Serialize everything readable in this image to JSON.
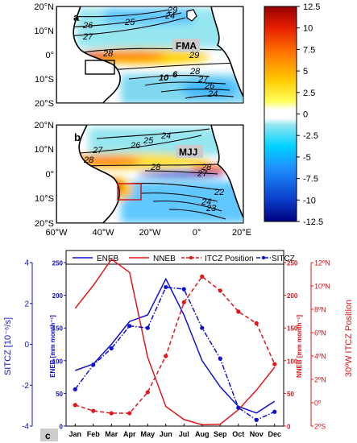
{
  "maps": {
    "panel_a": {
      "label": "a",
      "season": "FMA",
      "lat_ticks": [
        "20°N",
        "10°N",
        "0°",
        "10°S",
        "20°S"
      ],
      "contour_labels": [
        "24",
        "25",
        "26",
        "27",
        "28",
        "29",
        "29",
        "10",
        "6",
        "28",
        "27",
        "26",
        "24"
      ]
    },
    "panel_b": {
      "label": "b",
      "season": "MJJ",
      "lat_ticks": [
        "20°N",
        "10°N",
        "0°",
        "10°S",
        "20°S"
      ],
      "lon_ticks": [
        "60°W",
        "40°W",
        "20°W",
        "0°",
        "20°E"
      ],
      "contour_labels": [
        "24",
        "25",
        "26",
        "27",
        "28",
        "28",
        "27",
        "28",
        "24",
        "23",
        "22"
      ]
    },
    "colorbar": {
      "ticks": [
        "12.5",
        "10",
        "7.5",
        "5",
        "2.5",
        "0",
        "-2.5",
        "-5",
        "-7.5",
        "-10",
        "-12.5"
      ],
      "colors": [
        "#00007f",
        "#0a3cc8",
        "#1e90ff",
        "#00d2ff",
        "#96e6f0",
        "#ffffff",
        "#ffff5a",
        "#ffc800",
        "#ff7800",
        "#e61e00",
        "#960000"
      ]
    }
  },
  "chart_data": {
    "type": "line",
    "panel_label": "c",
    "categories": [
      "Jan",
      "Feb",
      "Mar",
      "Apr",
      "May",
      "Jun",
      "Jul",
      "Aug",
      "Sep",
      "Oct",
      "Nov",
      "Dec"
    ],
    "legend": {
      "placement": "top",
      "entries": [
        "ENEB",
        "NNEB",
        "ITCZ Position",
        "SITCZ"
      ]
    },
    "y_left_outer": {
      "label": "SITCZ [10⁻⁶/s]",
      "ylim": [
        -4,
        4
      ],
      "ticks": [
        "4",
        "2",
        "0",
        "-2",
        "-4"
      ],
      "color": "#1010cc"
    },
    "y_left_inner": {
      "label": "ENEB [mm month⁻¹]",
      "ylim": [
        0,
        250
      ],
      "ticks": [
        "250",
        "200",
        "150",
        "100",
        "50",
        "0"
      ],
      "color": "#1010cc"
    },
    "y_right_inner": {
      "label": "NNEB [mm month⁻¹]",
      "ylim": [
        0,
        250
      ],
      "ticks": [
        "250",
        "200",
        "150",
        "100",
        "50",
        "0"
      ],
      "color": "#e0161b"
    },
    "y_right_outer": {
      "label": "30ºW ITCZ Position",
      "ylim": [
        -2,
        12
      ],
      "ticks": [
        "12ºN",
        "10ºN",
        "8ºN",
        "6ºN",
        "4ºN",
        "2ºN",
        "0º",
        "2ºS"
      ],
      "color": "#e0161b"
    },
    "series": [
      {
        "name": "ENEB",
        "axis": "y_left_inner",
        "style": "solid",
        "color": "#1010cc",
        "values": [
          85,
          95,
          125,
          160,
          170,
          225,
          170,
          100,
          60,
          30,
          20,
          38
        ]
      },
      {
        "name": "NNEB",
        "axis": "y_right_inner",
        "style": "solid",
        "color": "#e0161b",
        "values": [
          180,
          215,
          255,
          235,
          105,
          30,
          10,
          2,
          3,
          25,
          55,
          90
        ]
      },
      {
        "name": "ITCZ Position",
        "axis": "y_right_outer",
        "style": "dashed",
        "marker": "dot",
        "color": "#e0161b",
        "values": [
          -0.2,
          -0.7,
          -0.9,
          -0.9,
          0.9,
          4.0,
          8.6,
          10.8,
          9.6,
          7.8,
          6.8,
          3.3
        ]
      },
      {
        "name": "SITCZ",
        "axis": "y_left_outer",
        "style": "dashdot",
        "marker": "dot",
        "color": "#1010cc",
        "values": [
          -2.2,
          -1.0,
          -0.2,
          0.9,
          0.8,
          2.8,
          2.7,
          0.8,
          -0.7,
          -3.1,
          -3.7,
          -3.3
        ]
      }
    ]
  }
}
